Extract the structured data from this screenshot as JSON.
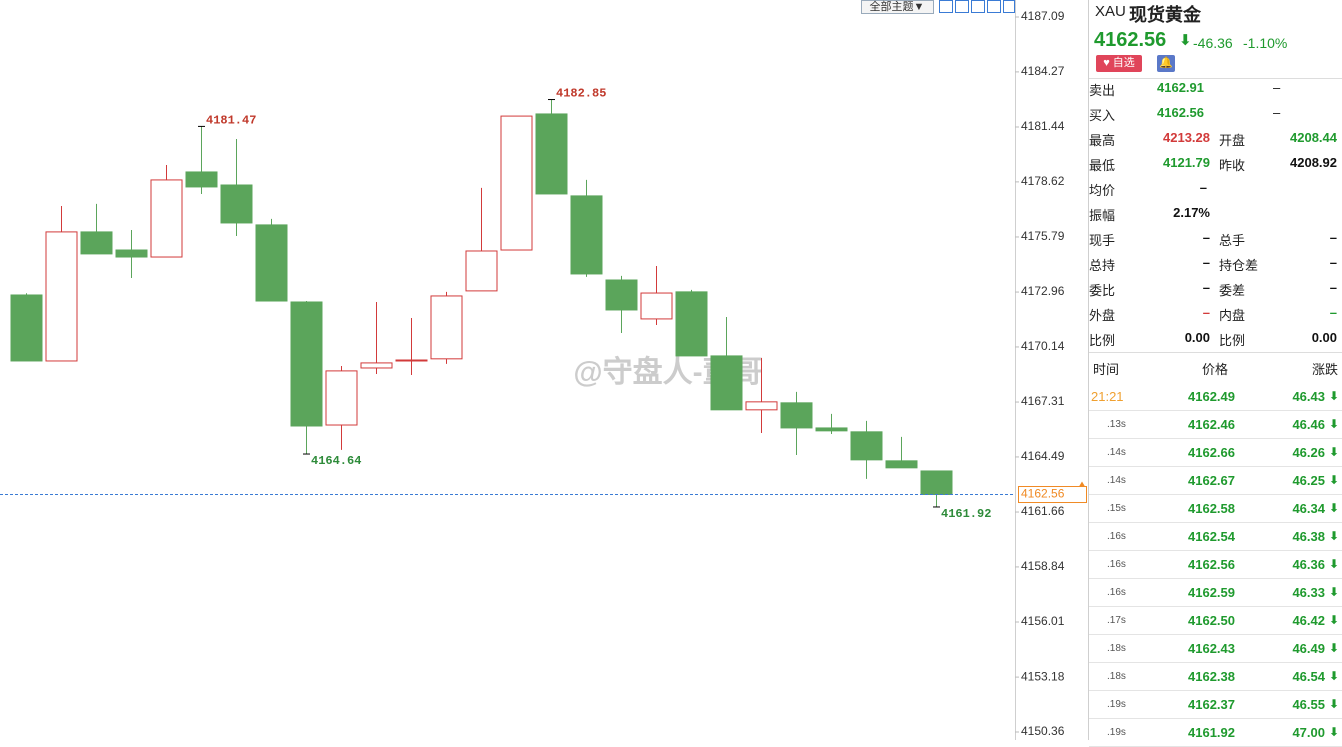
{
  "chart_data": {
    "type": "candlestick",
    "open": [
      4172.81,
      4169.42,
      4176.05,
      4175.12,
      4174.76,
      4179.13,
      4178.46,
      4176.41,
      4172.45,
      4166.13,
      4169.06,
      4169.42,
      4169.53,
      4173.02,
      4175.12,
      4182.11,
      4177.9,
      4173.58,
      4171.58,
      4172.97,
      4169.68,
      4166.91,
      4167.27,
      4165.98,
      4165.78,
      4164.29,
      4163.77
    ],
    "high": [
      4172.9,
      4177.38,
      4177.49,
      4176.15,
      4179.49,
      4181.47,
      4180.82,
      4176.72,
      4172.5,
      4169.16,
      4172.45,
      4171.63,
      4172.97,
      4178.31,
      4182.0,
      4182.85,
      4178.72,
      4173.79,
      4174.3,
      4173.07,
      4171.68,
      4169.58,
      4167.83,
      4166.7,
      4166.34,
      4165.52,
      4163.77
    ],
    "low": [
      4169.42,
      4169.42,
      4174.92,
      4173.68,
      4174.76,
      4178.0,
      4175.84,
      4172.5,
      4164.64,
      4164.85,
      4168.75,
      4168.7,
      4169.27,
      4173.02,
      4175.12,
      4178.0,
      4173.74,
      4170.86,
      4171.27,
      4169.68,
      4166.91,
      4165.72,
      4164.59,
      4165.67,
      4163.36,
      4163.93,
      4161.92
    ],
    "close": [
      4169.42,
      4176.05,
      4174.92,
      4174.76,
      4178.72,
      4178.36,
      4176.51,
      4172.5,
      4166.08,
      4168.91,
      4169.32,
      4169.47,
      4172.76,
      4175.07,
      4182.0,
      4178.0,
      4173.89,
      4172.04,
      4172.91,
      4169.68,
      4166.91,
      4167.32,
      4165.98,
      4165.83,
      4164.34,
      4163.93,
      4162.56
    ],
    "up_color": "#d23a3a",
    "down_color": "#5ba55b",
    "ylim": [
      4150.36,
      4187.09
    ],
    "yticks": [
      4150.36,
      4153.18,
      4156.01,
      4158.84,
      4161.66,
      4164.49,
      4167.31,
      4170.14,
      4172.96,
      4175.79,
      4178.62,
      4181.44,
      4184.27,
      4187.09
    ]
  },
  "toolbar": {
    "theme": "全部主题▼"
  },
  "watermark": "@守盘人-董哥",
  "quote": {
    "symbol": "XAU",
    "name": "现货黄金",
    "price": "4162.56",
    "change": "-46.36",
    "percent": "-1.10%",
    "favorite": "自选",
    "rows": [
      [
        "卖出",
        "4162.91",
        "–"
      ],
      [
        "买入",
        "4162.56",
        "–"
      ],
      [
        "最高",
        "4213.28",
        "开盘",
        "4208.44"
      ],
      [
        "最低",
        "4121.79",
        "昨收",
        "4208.92"
      ],
      [
        "均价",
        "–"
      ],
      [
        "振幅",
        "2.17%"
      ],
      [
        "现手",
        "–",
        "总手",
        "–"
      ],
      [
        "总持",
        "–",
        "持仓差",
        "–"
      ],
      [
        "委比",
        "–",
        "委差",
        "–"
      ],
      [
        "外盘",
        "–",
        "内盘",
        "–"
      ],
      [
        "比例",
        "0.00",
        "比例",
        "0.00"
      ]
    ]
  },
  "trades": {
    "headers": [
      "时间",
      "价格",
      "涨跌"
    ],
    "rows": [
      [
        "21:21",
        "4162.49",
        "46.43"
      ],
      [
        ".13s",
        "4162.46",
        "46.46"
      ],
      [
        ".14s",
        "4162.66",
        "46.26"
      ],
      [
        ".14s",
        "4162.67",
        "46.25"
      ],
      [
        ".15s",
        "4162.58",
        "46.34"
      ],
      [
        ".16s",
        "4162.54",
        "46.38"
      ],
      [
        ".16s",
        "4162.56",
        "46.36"
      ],
      [
        ".16s",
        "4162.59",
        "46.33"
      ],
      [
        ".17s",
        "4162.50",
        "46.42"
      ],
      [
        ".18s",
        "4162.43",
        "46.49"
      ],
      [
        ".18s",
        "4162.38",
        "46.54"
      ],
      [
        ".19s",
        "4162.37",
        "46.55"
      ],
      [
        ".19s",
        "4161.92",
        "47.00"
      ]
    ]
  }
}
